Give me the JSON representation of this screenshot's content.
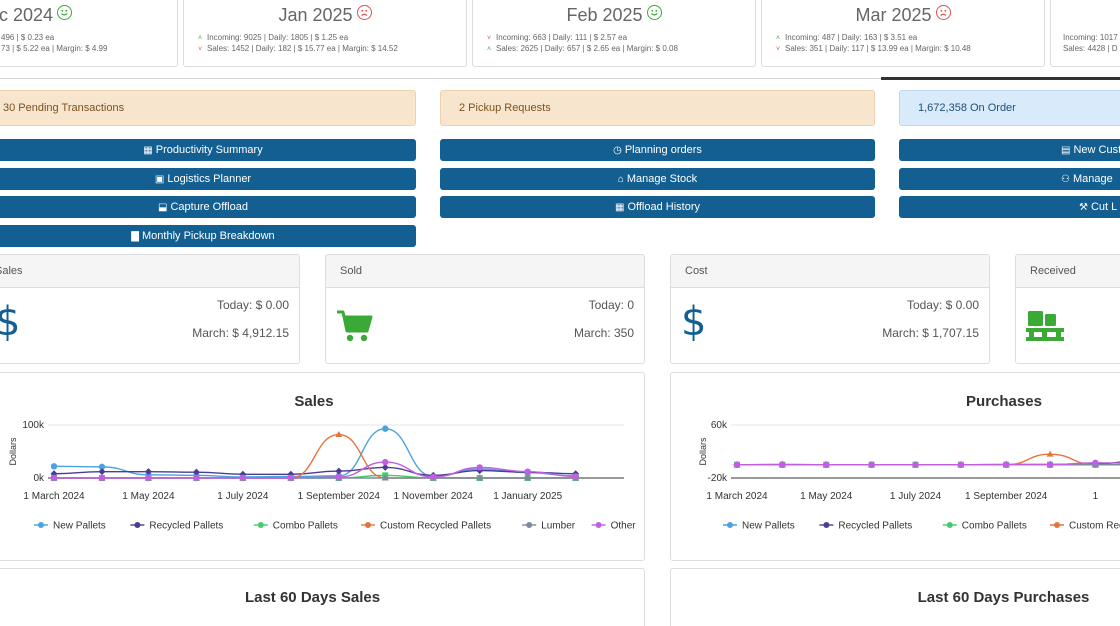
{
  "months": [
    {
      "title": "ec 2024",
      "mood": "happy",
      "line1": "496 | $ 0.23 ea",
      "line2": "73 | $ 5.22 ea | Margin: $ 4.99",
      "a1": "",
      "a2": ""
    },
    {
      "title": "Jan 2025",
      "mood": "sad",
      "line1": "Incoming: 9025 | Daily: 1805 | $ 1.25 ea",
      "line2": "Sales: 1452 | Daily: 182 | $ 15.77 ea | Margin: $ 14.52",
      "a1": "up",
      "a2": "down"
    },
    {
      "title": "Feb 2025",
      "mood": "happy",
      "line1": "Incoming: 663 | Daily: 111 | $ 2.57 ea",
      "line2": "Sales: 2625 | Daily: 657 | $ 2.65 ea | Margin: $ 0.08",
      "a1": "down",
      "a2": "up"
    },
    {
      "title": "Mar 2025",
      "mood": "sad",
      "line1": "Incoming: 487 | Daily: 163 | $ 3.51 ea",
      "line2": "Sales: 351 | Daily: 117 | $ 13.99 ea | Margin: $ 10.48",
      "a1": "up",
      "a2": "down"
    },
    {
      "title": "",
      "mood": "",
      "line1": "Incoming: 1017",
      "line2": "Sales: 4428 | D",
      "a1": "",
      "a2": ""
    }
  ],
  "alerts": {
    "pending": "30 Pending Transactions",
    "pickup": "2 Pickup Requests",
    "on_order": "1,672,358 On Order"
  },
  "buttons": {
    "productivity_summary": "Productivity Summary",
    "logistics_planner": "Logistics Planner",
    "capture_offload": "Capture Offload",
    "monthly_pickup_breakdown": "Monthly Pickup Breakdown",
    "planning_orders": "Planning orders",
    "manage_stock": "Manage Stock",
    "offload_history": "Offload History",
    "new_customer": "New Custo",
    "manage": "Manage",
    "cut": "Cut L"
  },
  "stats": [
    {
      "head": "Sales",
      "today": "Today: $ 0.00",
      "month": "March: $ 4,912.15"
    },
    {
      "head": "Sold",
      "today": "Today: 0",
      "month": "March: 350"
    },
    {
      "head": "Cost",
      "today": "Today: $ 0.00",
      "month": "March: $ 1,707.15"
    },
    {
      "head": "Received",
      "today": "",
      "month": ""
    }
  ],
  "colors": {
    "button": "#135f92",
    "dollar": "#135f92",
    "cart": "#3aa935",
    "pallet": "#3aa935",
    "New Pallets": "#4aa3df",
    "Recycled Pallets": "#4b3d96",
    "Combo Pallets": "#47c96e",
    "Custom Recycled Pallets": "#e8733d",
    "Lumber": "#7b8a9f",
    "Other": "#c060e0"
  },
  "icons": {
    "stat_sales": "dollar-icon",
    "stat_sold": "cart-icon",
    "stat_cost": "dollar-icon",
    "stat_received": "pallet-icon"
  },
  "chart_data": [
    {
      "type": "line",
      "title": "Sales",
      "ylabel": "Dollars",
      "xlabel": "",
      "ylim": [
        0,
        100000
      ],
      "yticks": [
        "100k",
        "0k"
      ],
      "xticks": [
        "1 March 2024",
        "1 May 2024",
        "1 July 2024",
        "1 September 2024",
        "1 November 2024",
        "1 January 2025"
      ],
      "x": [
        "2024-03-01",
        "2024-04-01",
        "2024-05-01",
        "2024-06-01",
        "2024-07-01",
        "2024-08-01",
        "2024-09-01",
        "2024-10-01",
        "2024-11-01",
        "2024-12-01",
        "2025-01-01",
        "2025-02-01"
      ],
      "series": [
        {
          "name": "New Pallets",
          "values": [
            22000,
            21000,
            6000,
            5000,
            2000,
            3000,
            4000,
            93000,
            3000,
            17000,
            10000,
            4000
          ]
        },
        {
          "name": "Recycled Pallets",
          "values": [
            8000,
            12000,
            12000,
            11000,
            7000,
            7000,
            13000,
            20000,
            5000,
            14000,
            11000,
            8000
          ]
        },
        {
          "name": "Combo Pallets",
          "values": [
            0,
            0,
            0,
            0,
            0,
            0,
            0,
            5000,
            0,
            0,
            0,
            0
          ]
        },
        {
          "name": "Custom Recycled Pallets",
          "values": [
            0,
            0,
            0,
            0,
            0,
            0,
            82000,
            0,
            0,
            0,
            0,
            0
          ]
        },
        {
          "name": "Lumber",
          "values": [
            0,
            0,
            0,
            0,
            0,
            0,
            0,
            0,
            0,
            0,
            0,
            0
          ]
        },
        {
          "name": "Other",
          "values": [
            0,
            0,
            0,
            0,
            0,
            0,
            2000,
            30000,
            2000,
            20000,
            12000,
            3000
          ]
        }
      ],
      "legend": "bottom"
    },
    {
      "type": "line",
      "title": "Purchases",
      "ylabel": "Dollars",
      "xlabel": "",
      "ylim": [
        -20000,
        60000
      ],
      "yticks": [
        "60k",
        "-20k"
      ],
      "xticks": [
        "1 March 2024",
        "1 May 2024",
        "1 July 2024",
        "1 September 2024",
        "1"
      ],
      "x": [
        "2024-03-01",
        "2024-04-01",
        "2024-05-01",
        "2024-06-01",
        "2024-07-01",
        "2024-08-01",
        "2024-09-01",
        "2024-10-01",
        "2024-11-01",
        "2024-12-01"
      ],
      "series": [
        {
          "name": "New Pallets",
          "values": [
            0,
            0,
            0,
            0,
            0,
            0,
            0,
            0,
            0,
            0
          ]
        },
        {
          "name": "Recycled Pallets",
          "values": [
            0,
            500,
            0,
            0,
            0,
            0,
            500,
            500,
            1000,
            6000
          ]
        },
        {
          "name": "Combo Pallets",
          "values": [
            0,
            0,
            0,
            0,
            0,
            0,
            0,
            0,
            0,
            0
          ]
        },
        {
          "name": "Custom Recycled Pallets",
          "values": [
            0,
            0,
            0,
            0,
            0,
            0,
            0,
            16000,
            0,
            0
          ]
        },
        {
          "name": "Lumber",
          "values": [
            0,
            0,
            0,
            0,
            0,
            0,
            0,
            0,
            0,
            0
          ]
        },
        {
          "name": "Other",
          "values": [
            0,
            0,
            0,
            0,
            0,
            0,
            0,
            0,
            3000,
            2000
          ]
        }
      ],
      "legend": "bottom"
    }
  ],
  "bottom_panels": {
    "sales_title": "Last 60 Days Sales",
    "purchases_title": "Last 60 Days Purchases"
  }
}
